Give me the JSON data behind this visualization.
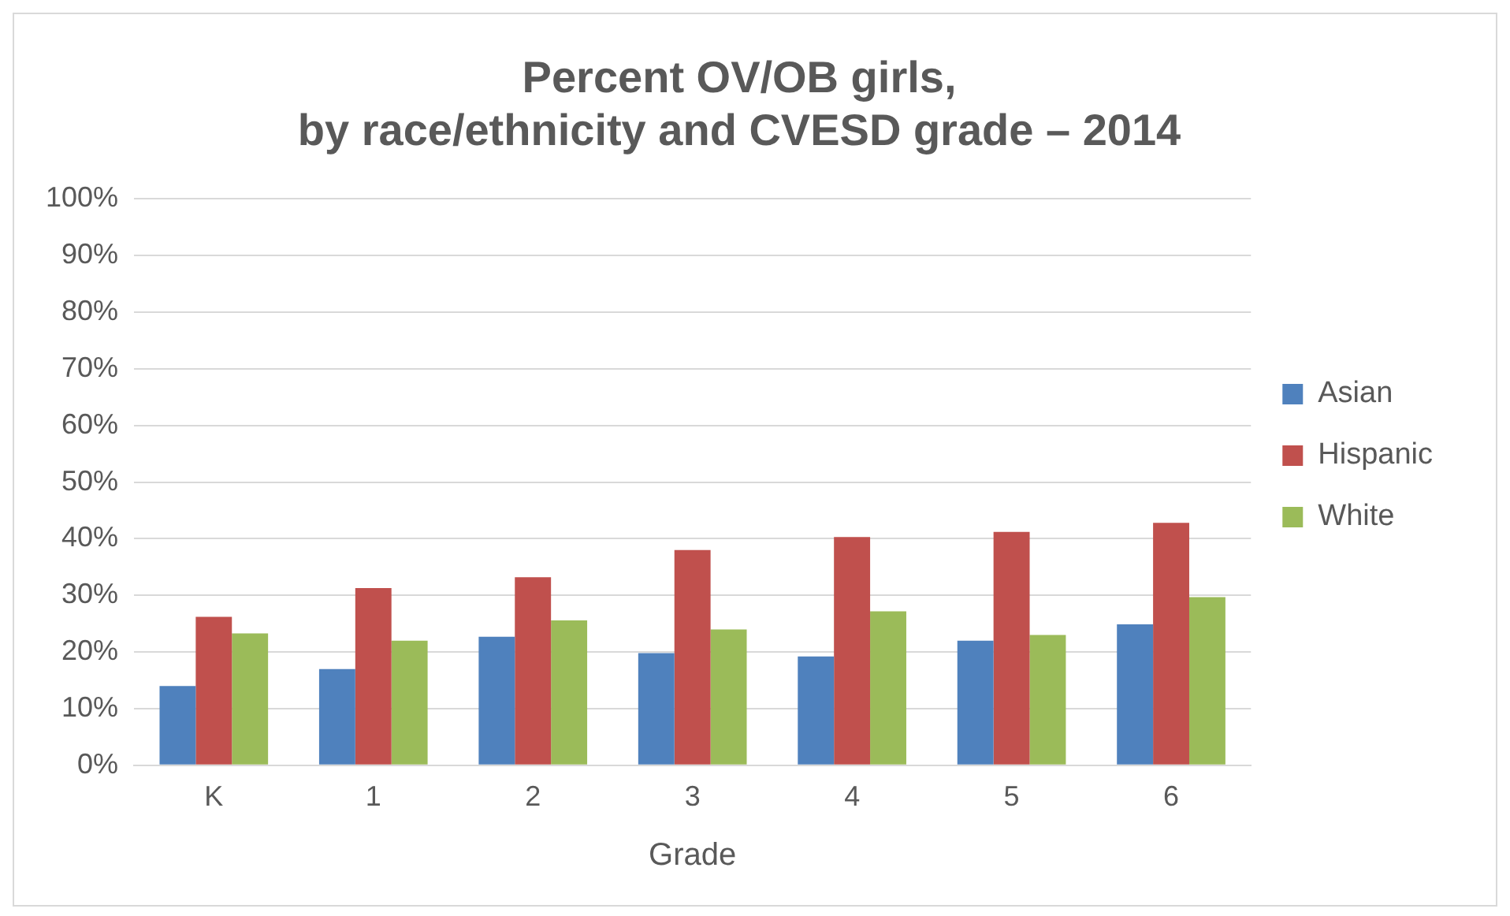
{
  "chart_data": {
    "type": "bar",
    "title": "Percent OV/OB girls,\nby race/ethnicity and CVESD grade – 2014",
    "xlabel": "Grade",
    "categories": [
      "K",
      "1",
      "2",
      "3",
      "4",
      "5",
      "6"
    ],
    "series": [
      {
        "name": "Asian",
        "color": "#4f81bd",
        "values": [
          14,
          17,
          22.7,
          19.8,
          19.2,
          22,
          24.9
        ]
      },
      {
        "name": "Hispanic",
        "color": "#c0504d",
        "values": [
          26.2,
          31.3,
          33.2,
          38,
          40.3,
          41.2,
          42.8
        ]
      },
      {
        "name": "White",
        "color": "#9bbb59",
        "values": [
          23.3,
          22,
          25.6,
          24,
          27.2,
          23,
          29.7
        ]
      }
    ],
    "ylim": [
      0,
      100
    ],
    "yticks": [
      {
        "value": 0,
        "label": "0%"
      },
      {
        "value": 10,
        "label": "10%"
      },
      {
        "value": 20,
        "label": "20%"
      },
      {
        "value": 30,
        "label": "30%"
      },
      {
        "value": 40,
        "label": "40%"
      },
      {
        "value": 50,
        "label": "50%"
      },
      {
        "value": 60,
        "label": "60%"
      },
      {
        "value": 70,
        "label": "70%"
      },
      {
        "value": 80,
        "label": "80%"
      },
      {
        "value": 90,
        "label": "90%"
      },
      {
        "value": 100,
        "label": "100%"
      }
    ],
    "grid": "y",
    "legend": "right"
  }
}
